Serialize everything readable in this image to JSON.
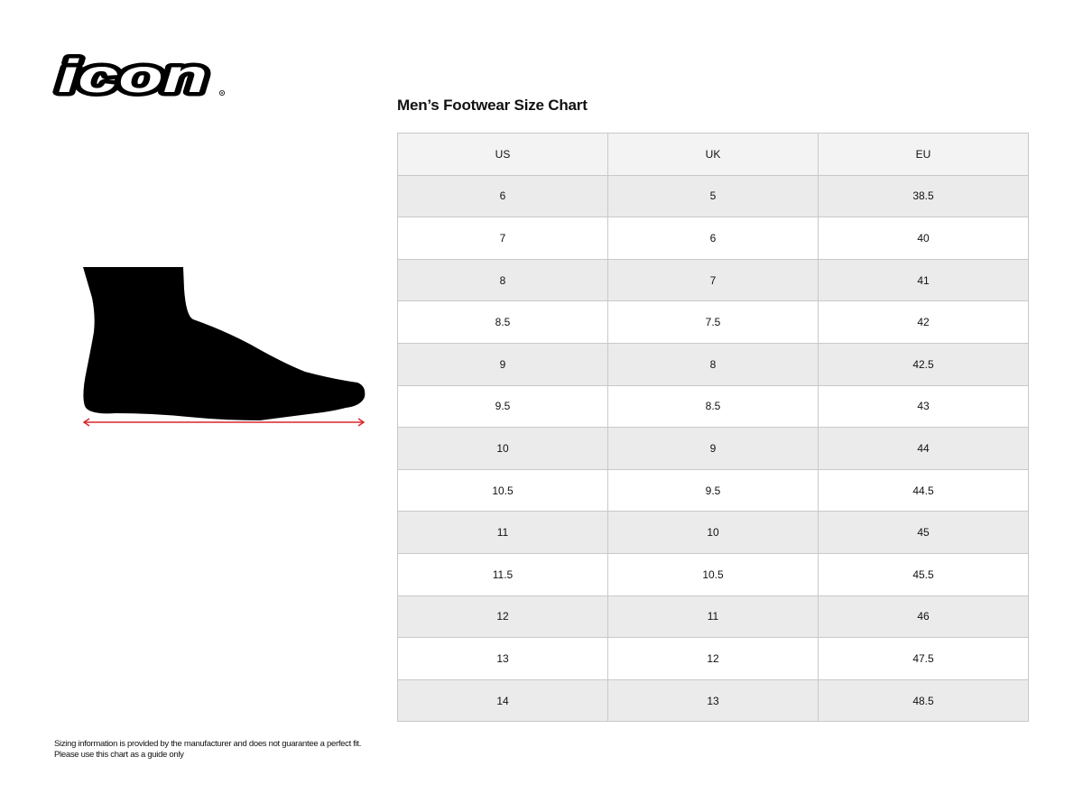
{
  "brand": {
    "logo_text": "icon"
  },
  "title": "Men’s Footwear Size Chart",
  "table": {
    "headers": [
      "US",
      "UK",
      "EU"
    ],
    "rows": [
      [
        "6",
        "5",
        "38.5"
      ],
      [
        "7",
        "6",
        "40"
      ],
      [
        "8",
        "7",
        "41"
      ],
      [
        "8.5",
        "7.5",
        "42"
      ],
      [
        "9",
        "8",
        "42.5"
      ],
      [
        "9.5",
        "8.5",
        "43"
      ],
      [
        "10",
        "9",
        "44"
      ],
      [
        "10.5",
        "9.5",
        "44.5"
      ],
      [
        "11",
        "10",
        "45"
      ],
      [
        "11.5",
        "10.5",
        "45.5"
      ],
      [
        "12",
        "11",
        "46"
      ],
      [
        "13",
        "12",
        "47.5"
      ],
      [
        "14",
        "13",
        "48.5"
      ]
    ]
  },
  "illustration": {
    "icon": "foot-silhouette-icon",
    "measure_color": "#d9252b"
  },
  "footnote": {
    "line1": "Sizing information is provided by the manufacturer and does not guarantee a perfect fit.",
    "line2": "Please use this chart as a guide only"
  }
}
